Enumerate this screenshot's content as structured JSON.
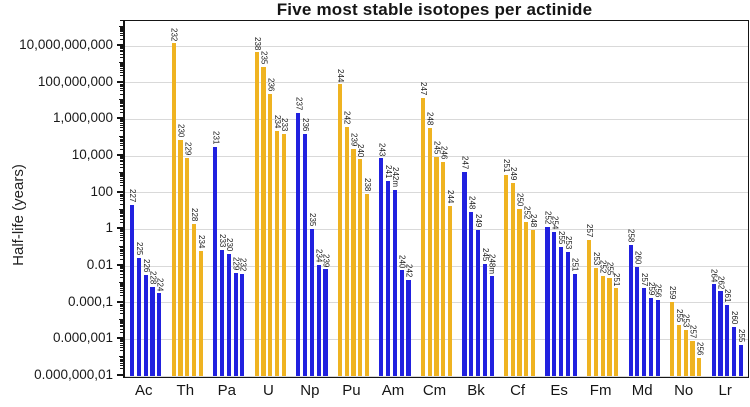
{
  "page": {
    "background": "#ffffff"
  },
  "chart_data": {
    "type": "bar",
    "title": "Five most stable isotopes per actinide",
    "ylabel": "Half-life (years)",
    "xlabel": "",
    "yscale": "log",
    "ylim": [
      1e-08,
      230000000000.0
    ],
    "grid": "horizontal gridlines every 2 decades",
    "legend": "none",
    "bar_labels": "isotope mass number, rotated vertical above each bar",
    "colors": {
      "gold": "#EFB321",
      "blue": "#2121DF",
      "gridline": "#D9D9D9",
      "axis": "#151515",
      "background": "#FFFFFF"
    },
    "yticks": [
      {
        "value": 10000000000.0,
        "label": "10,000,000,000"
      },
      {
        "value": 100000000.0,
        "label": "100,000,000"
      },
      {
        "value": 1000000.0,
        "label": "1,000,000"
      },
      {
        "value": 10000.0,
        "label": "10,000"
      },
      {
        "value": 100.0,
        "label": "100"
      },
      {
        "value": 1,
        "label": "1"
      },
      {
        "value": 0.01,
        "label": "0.01"
      },
      {
        "value": 0.0001,
        "label": "0.000,1"
      },
      {
        "value": 1e-06,
        "label": "0.000,001"
      },
      {
        "value": 1e-08,
        "label": "0.000,000,01"
      }
    ],
    "categories": [
      "Ac",
      "Th",
      "Pa",
      "U",
      "Np",
      "Pu",
      "Am",
      "Cm",
      "Bk",
      "Cf",
      "Es",
      "Fm",
      "Md",
      "No",
      "Lr"
    ],
    "groups": [
      {
        "element": "Ac",
        "color": "blue",
        "bars": [
          {
            "isotope": "227",
            "half_life_years": 21.8
          },
          {
            "isotope": "225",
            "half_life_years": 0.0274
          },
          {
            "isotope": "226",
            "half_life_years": 0.0034
          },
          {
            "isotope": "228",
            "half_life_years": 0.0007
          },
          {
            "isotope": "224",
            "half_life_years": 0.00032
          }
        ]
      },
      {
        "element": "Th",
        "color": "gold",
        "bars": [
          {
            "isotope": "232",
            "half_life_years": 14000000000.0
          },
          {
            "isotope": "230",
            "half_life_years": 75400
          },
          {
            "isotope": "229",
            "half_life_years": 7900
          },
          {
            "isotope": "228",
            "half_life_years": 1.91
          },
          {
            "isotope": "234",
            "half_life_years": 0.066
          }
        ]
      },
      {
        "element": "Pa",
        "color": "blue",
        "bars": [
          {
            "isotope": "231",
            "half_life_years": 32760
          },
          {
            "isotope": "233",
            "half_life_years": 0.0739
          },
          {
            "isotope": "230",
            "half_life_years": 0.0477
          },
          {
            "isotope": "229",
            "half_life_years": 0.0041
          },
          {
            "isotope": "232",
            "half_life_years": 0.0036
          }
        ]
      },
      {
        "element": "U",
        "color": "gold",
        "bars": [
          {
            "isotope": "238",
            "half_life_years": 4470000000.0
          },
          {
            "isotope": "235",
            "half_life_years": 704000000.0
          },
          {
            "isotope": "236",
            "half_life_years": 23400000.0
          },
          {
            "isotope": "234",
            "half_life_years": 245000
          },
          {
            "isotope": "233",
            "half_life_years": 159000
          }
        ]
      },
      {
        "element": "Np",
        "color": "blue",
        "bars": [
          {
            "isotope": "237",
            "half_life_years": 2140000
          },
          {
            "isotope": "236",
            "half_life_years": 154000
          },
          {
            "isotope": "235",
            "half_life_years": 1.08
          },
          {
            "isotope": "234",
            "half_life_years": 0.012
          },
          {
            "isotope": "239",
            "half_life_years": 0.0065
          }
        ]
      },
      {
        "element": "Pu",
        "color": "gold",
        "bars": [
          {
            "isotope": "244",
            "half_life_years": 81000000.0
          },
          {
            "isotope": "242",
            "half_life_years": 373000
          },
          {
            "isotope": "239",
            "half_life_years": 24100
          },
          {
            "isotope": "240",
            "half_life_years": 6560
          },
          {
            "isotope": "238",
            "half_life_years": 87.7
          }
        ]
      },
      {
        "element": "Am",
        "color": "blue",
        "bars": [
          {
            "isotope": "243",
            "half_life_years": 7370
          },
          {
            "isotope": "241",
            "half_life_years": 432
          },
          {
            "isotope": "242m",
            "half_life_years": 141
          },
          {
            "isotope": "240",
            "half_life_years": 0.0058
          },
          {
            "isotope": "242",
            "half_life_years": 0.0018
          }
        ]
      },
      {
        "element": "Cm",
        "color": "gold",
        "bars": [
          {
            "isotope": "247",
            "half_life_years": 15600000.0
          },
          {
            "isotope": "248",
            "half_life_years": 348000
          },
          {
            "isotope": "245",
            "half_life_years": 8500
          },
          {
            "isotope": "246",
            "half_life_years": 4760
          },
          {
            "isotope": "244",
            "half_life_years": 18.1
          }
        ]
      },
      {
        "element": "Bk",
        "color": "blue",
        "bars": [
          {
            "isotope": "247",
            "half_life_years": 1380
          },
          {
            "isotope": "248",
            "half_life_years": 9
          },
          {
            "isotope": "249",
            "half_life_years": 0.9
          },
          {
            "isotope": "245",
            "half_life_years": 0.0135
          },
          {
            "isotope": "248m",
            "half_life_years": 0.0027
          }
        ]
      },
      {
        "element": "Cf",
        "color": "gold",
        "bars": [
          {
            "isotope": "251",
            "half_life_years": 898
          },
          {
            "isotope": "249",
            "half_life_years": 351
          },
          {
            "isotope": "250",
            "half_life_years": 13.1
          },
          {
            "isotope": "252",
            "half_life_years": 2.65
          },
          {
            "isotope": "248",
            "half_life_years": 0.91
          }
        ]
      },
      {
        "element": "Es",
        "color": "blue",
        "bars": [
          {
            "isotope": "252",
            "half_life_years": 1.29
          },
          {
            "isotope": "254",
            "half_life_years": 0.755
          },
          {
            "isotope": "255",
            "half_life_years": 0.109
          },
          {
            "isotope": "253",
            "half_life_years": 0.056
          },
          {
            "isotope": "251",
            "half_life_years": 0.0038
          }
        ]
      },
      {
        "element": "Fm",
        "color": "gold",
        "bars": [
          {
            "isotope": "257",
            "half_life_years": 0.275
          },
          {
            "isotope": "253",
            "half_life_years": 0.0082
          },
          {
            "isotope": "252",
            "half_life_years": 0.0029
          },
          {
            "isotope": "255",
            "half_life_years": 0.0023
          },
          {
            "isotope": "251",
            "half_life_years": 0.0006
          }
        ]
      },
      {
        "element": "Md",
        "color": "blue",
        "bars": [
          {
            "isotope": "258",
            "half_life_years": 0.141
          },
          {
            "isotope": "260",
            "half_life_years": 0.009
          },
          {
            "isotope": "257",
            "half_life_years": 0.0006
          },
          {
            "isotope": "259",
            "half_life_years": 0.00018
          },
          {
            "isotope": "256",
            "half_life_years": 0.00014
          }
        ]
      },
      {
        "element": "No",
        "color": "gold",
        "bars": [
          {
            "isotope": "259",
            "half_life_years": 0.00011
          },
          {
            "isotope": "255",
            "half_life_years": 5.9e-06
          },
          {
            "isotope": "253",
            "half_life_years": 3.1e-06
          },
          {
            "isotope": "257",
            "half_life_years": 7.8e-07
          },
          {
            "isotope": "256",
            "half_life_years": 9.2e-08
          }
        ]
      },
      {
        "element": "Lr",
        "color": "blue",
        "bars": [
          {
            "isotope": "264",
            "half_life_years": 0.001
          },
          {
            "isotope": "262",
            "half_life_years": 0.00041
          },
          {
            "isotope": "261",
            "half_life_years": 7.4e-05
          },
          {
            "isotope": "260",
            "half_life_years": 5e-06
          },
          {
            "isotope": "255",
            "half_life_years": 5e-07
          }
        ]
      }
    ]
  }
}
